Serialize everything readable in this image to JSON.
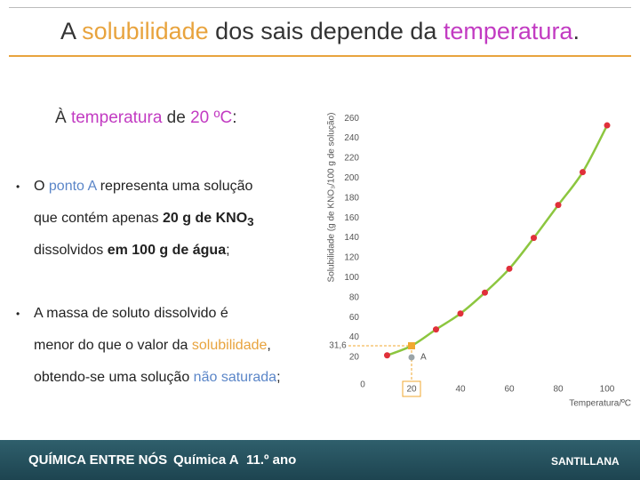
{
  "header": {
    "title": [
      {
        "text": "A "
      },
      {
        "text": "solubilidade",
        "color": "#e8a33d"
      },
      {
        "text": " dos sais depende da "
      },
      {
        "text": "temperatura",
        "color": "#c23bc2"
      },
      {
        "text": "."
      }
    ]
  },
  "intro": [
    {
      "text": "À "
    },
    {
      "text": "temperatura",
      "color": "#c23bc2"
    },
    {
      "text": " de "
    },
    {
      "text": "20 ºC",
      "color": "#c23bc2"
    },
    {
      "text": ":"
    }
  ],
  "bullets": [
    [
      [
        {
          "text": "O "
        },
        {
          "text": "ponto A",
          "color": "#5b86c8"
        },
        {
          "text": " representa uma solução"
        }
      ],
      [
        {
          "text": "que contém apenas "
        },
        {
          "text": "20 g de KNO",
          "bold": true
        },
        {
          "text": "3",
          "bold": true,
          "sub": true
        }
      ],
      [
        {
          "text": "dissolvidos "
        },
        {
          "text": "em 100 g de água",
          "bold": true
        },
        {
          "text": ";"
        }
      ]
    ],
    [
      [
        {
          "text": "A massa de soluto dissolvido é"
        }
      ],
      [
        {
          "text": "menor do que o valor da "
        },
        {
          "text": "solubilidade",
          "color": "#e8a33d"
        },
        {
          "text": ","
        }
      ],
      [
        {
          "text": "obtendo-se uma solução "
        },
        {
          "text": "não saturada",
          "color": "#5b86c8"
        },
        {
          "text": ";"
        }
      ]
    ]
  ],
  "chart_data": {
    "type": "line",
    "y_label": "Solubilidade (g de KNO₃/100 g de solução)",
    "x_label": "Temperatura/ºC",
    "x": [
      10,
      20,
      30,
      40,
      50,
      60,
      70,
      80,
      90,
      100
    ],
    "values": [
      22,
      31.6,
      48,
      64,
      85,
      109,
      140,
      173,
      206,
      253
    ],
    "value_labels": [
      null,
      "31,6",
      null,
      null,
      null,
      null,
      null,
      null,
      null,
      null
    ],
    "color": "#8cc63f",
    "marker_color": "#e0303a",
    "highlight_color": "#f0a830",
    "xlim": [
      0,
      100
    ],
    "xticks": [
      0,
      20,
      40,
      60,
      80,
      100
    ],
    "ylim": [
      0,
      270
    ],
    "yticks": [
      20,
      40,
      60,
      80,
      100,
      120,
      140,
      160,
      180,
      200,
      220,
      240,
      260
    ],
    "highlight_x": 20,
    "point": {
      "label": "A",
      "x": 20,
      "y": 20,
      "color": "#9aa4a8"
    }
  },
  "footer": {
    "book": "QUÍMICA ENTRE NÓS",
    "subject": "Química A",
    "year": "11.º ano",
    "publisher": "SANTILLANA"
  }
}
